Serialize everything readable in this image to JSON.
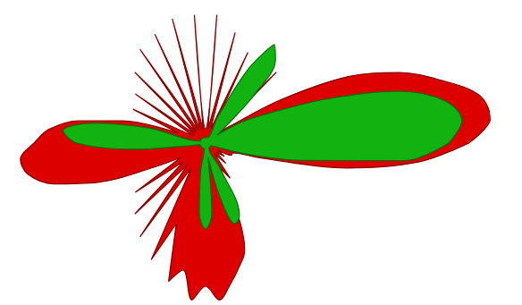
{
  "chart_data": {
    "type": "polar",
    "x": [
      0,
      5,
      10,
      15,
      20,
      25,
      30,
      35,
      40,
      45,
      50,
      55,
      60,
      65,
      70,
      75,
      80,
      85,
      90,
      95,
      100,
      105,
      110,
      115,
      120,
      125,
      130,
      135,
      140,
      145,
      150,
      155,
      160,
      165,
      170,
      175,
      180,
      185,
      190,
      195,
      200,
      205,
      210,
      215,
      220,
      225,
      230,
      235,
      240,
      245,
      250,
      255,
      260,
      265,
      270,
      275,
      280,
      285,
      290,
      295,
      300,
      305,
      310,
      315,
      320,
      325,
      330,
      335,
      340,
      345,
      350,
      355
    ],
    "xlim": [
      0,
      360
    ],
    "ylim": [
      0,
      1
    ],
    "tick_labels": false,
    "grid": false,
    "series": [
      {
        "color": "#dd0000",
        "values": [
          0.92,
          1.0,
          0.97,
          0.85,
          0.72,
          0.55,
          0.3,
          0.1,
          0.05,
          0.35,
          0.05,
          0.3,
          0.05,
          0.35,
          0.05,
          0.4,
          0.05,
          0.45,
          0.05,
          0.45,
          0.05,
          0.45,
          0.05,
          0.42,
          0.05,
          0.4,
          0.05,
          0.35,
          0.05,
          0.3,
          0.05,
          0.28,
          0.1,
          0.3,
          0.45,
          0.55,
          0.6,
          0.65,
          0.63,
          0.55,
          0.4,
          0.2,
          0.1,
          0.3,
          0.1,
          0.35,
          0.1,
          0.4,
          0.1,
          0.45,
          0.3,
          0.5,
          0.45,
          0.55,
          0.5,
          0.55,
          0.5,
          0.45,
          0.4,
          0.25,
          0.1,
          0.15,
          0.05,
          0.1,
          0.05,
          0.08,
          0.05,
          0.1,
          0.1,
          0.2,
          0.5,
          0.75
        ]
      },
      {
        "color": "#11b311",
        "values": [
          0.85,
          0.9,
          0.85,
          0.7,
          0.45,
          0.25,
          0.15,
          0.05,
          0.1,
          0.25,
          0.38,
          0.42,
          0.3,
          0.1,
          0.02,
          0.02,
          0.02,
          0.02,
          0.02,
          0.02,
          0.02,
          0.02,
          0.02,
          0.02,
          0.02,
          0.02,
          0.02,
          0.02,
          0.02,
          0.02,
          0.02,
          0.02,
          0.02,
          0.2,
          0.4,
          0.5,
          0.45,
          0.25,
          0.05,
          0.02,
          0.02,
          0.02,
          0.02,
          0.02,
          0.02,
          0.02,
          0.02,
          0.02,
          0.02,
          0.02,
          0.02,
          0.02,
          0.1,
          0.25,
          0.3,
          0.25,
          0.05,
          0.2,
          0.3,
          0.28,
          0.1,
          0.02,
          0.02,
          0.02,
          0.02,
          0.02,
          0.02,
          0.02,
          0.02,
          0.15,
          0.35,
          0.7
        ]
      }
    ]
  }
}
